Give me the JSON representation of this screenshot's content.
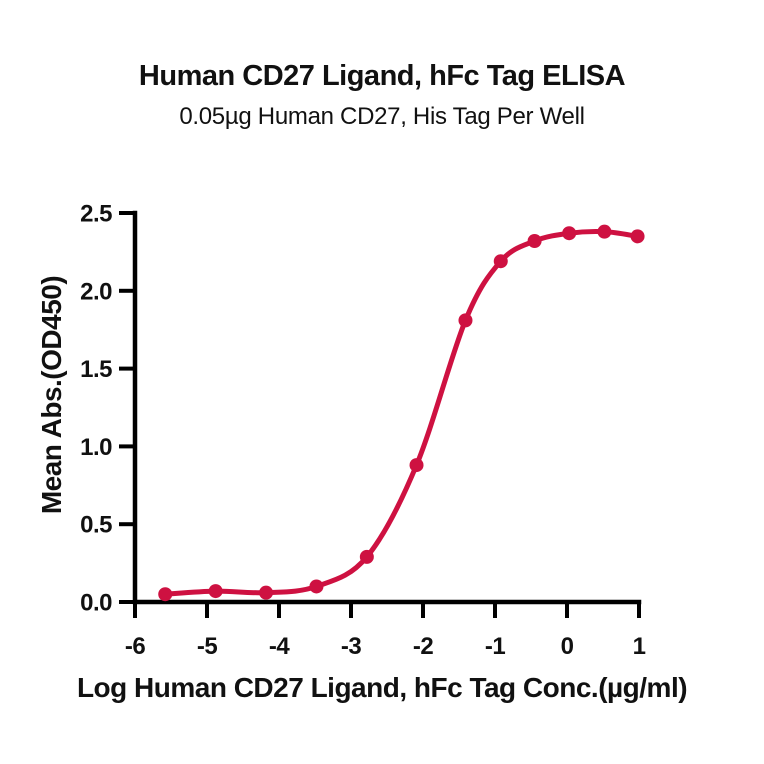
{
  "chart_data": {
    "type": "line",
    "title": "Human CD27 Ligand, hFc Tag ELISA",
    "subtitle": "0.05µg Human CD27, His Tag Per Well",
    "xlabel": "Log Human CD27 Ligand, hFc Tag Conc.(µg/ml)",
    "ylabel": "Mean Abs.(OD450)",
    "xlim": [
      -6,
      1
    ],
    "ylim": [
      0,
      2.5
    ],
    "x_ticks": [
      -6,
      -5,
      -4,
      -3,
      -2,
      -1,
      0,
      1
    ],
    "x_tick_labels": [
      "-6",
      "-5",
      "-4",
      "-3",
      "-2",
      "-1",
      "0",
      "1"
    ],
    "y_ticks": [
      0,
      0.5,
      1,
      1.5,
      2,
      2.5
    ],
    "y_tick_labels": [
      "0.0",
      "0.5",
      "1.0",
      "1.5",
      "2.0",
      "2.5"
    ],
    "grid": false,
    "legend": null,
    "series": [
      {
        "name": "Human CD27 Ligand, hFc Tag",
        "color": "#CE1141",
        "marker": "circle",
        "x": [
          -5.58,
          -4.88,
          -4.18,
          -3.48,
          -2.78,
          -2.09,
          -1.41,
          -0.92,
          -0.45,
          0.03,
          0.52,
          0.98
        ],
        "y": [
          0.05,
          0.07,
          0.06,
          0.1,
          0.29,
          0.88,
          1.81,
          2.19,
          2.32,
          2.37,
          2.38,
          2.35
        ]
      }
    ],
    "colors": {
      "curve": "#CE1141",
      "axis": "#000000",
      "text": "#111111",
      "background": "#ffffff"
    }
  }
}
